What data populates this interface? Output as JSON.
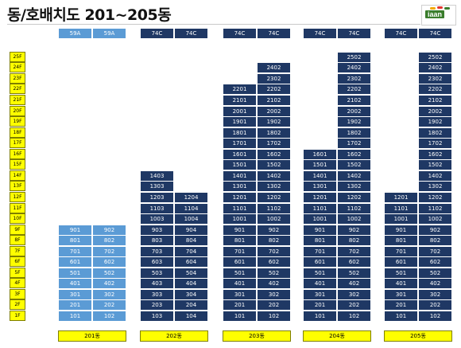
{
  "title": "동/호배치도 201~205동",
  "logo": {
    "text": "iaan"
  },
  "colors": {
    "dark_unit": "#1f3864",
    "light_unit": "#5b9bd5",
    "label_bg": "#ffff00"
  },
  "floors": [
    "1F",
    "2F",
    "3F",
    "4F",
    "5F",
    "6F",
    "7F",
    "8F",
    "9F",
    "10F",
    "11F",
    "12F",
    "13F",
    "14F",
    "15F",
    "16F",
    "17F",
    "18F",
    "19F",
    "20F",
    "21F",
    "22F",
    "23F",
    "24F",
    "25F"
  ],
  "buildings": [
    {
      "label": "201동",
      "types": [
        "59A",
        "59A"
      ],
      "tone": "light",
      "lines": [
        {
          "suffix": "01",
          "top": 9
        },
        {
          "suffix": "02",
          "top": 9
        }
      ]
    },
    {
      "label": "202동",
      "types": [
        "74C",
        "74C"
      ],
      "tone": "dark",
      "lines": [
        {
          "suffix": "03",
          "top": 14
        },
        {
          "suffix": "04",
          "top": 12
        }
      ]
    },
    {
      "label": "203동",
      "types": [
        "74C",
        "74C"
      ],
      "tone": "dark",
      "lines": [
        {
          "suffix": "01",
          "top": 22
        },
        {
          "suffix": "02",
          "top": 24
        }
      ]
    },
    {
      "label": "204동",
      "types": [
        "74C",
        "74C"
      ],
      "tone": "dark",
      "lines": [
        {
          "suffix": "01",
          "top": 16
        },
        {
          "suffix": "02",
          "top": 25
        }
      ]
    },
    {
      "label": "205동",
      "types": [
        "74C",
        "74C"
      ],
      "tone": "dark",
      "lines": [
        {
          "suffix": "01",
          "top": 12
        },
        {
          "suffix": "02",
          "top": 25
        }
      ]
    }
  ]
}
